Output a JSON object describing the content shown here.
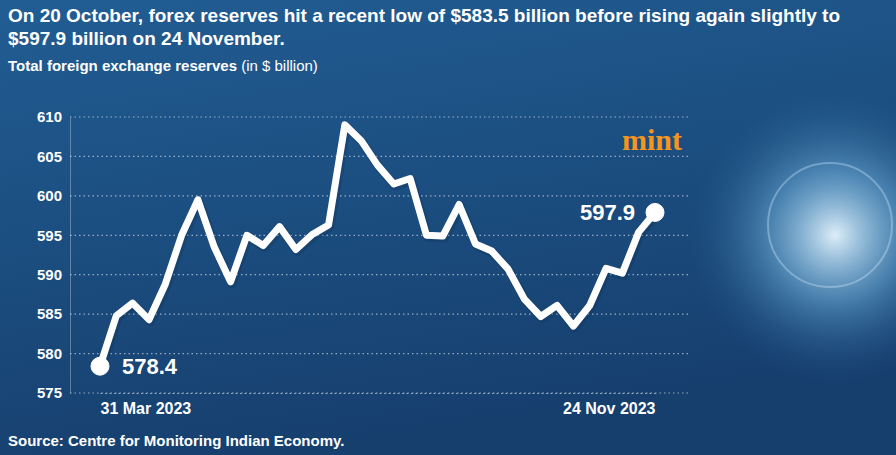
{
  "chart_data": {
    "type": "line",
    "title": "On 20 October, forex reserves hit a recent low of $583.5 billion before rising again slightly to $597.9 billion on 24 November.",
    "subtitle": "Total foreign exchange reserves (in $ billion)",
    "source": "Source: Centre for Monitoring Indian Economy.",
    "logo": "mint",
    "x": [
      "2023-03-31",
      "2023-04-07",
      "2023-04-14",
      "2023-04-21",
      "2023-04-28",
      "2023-05-05",
      "2023-05-12",
      "2023-05-19",
      "2023-05-26",
      "2023-06-02",
      "2023-06-09",
      "2023-06-16",
      "2023-06-23",
      "2023-06-30",
      "2023-07-07",
      "2023-07-14",
      "2023-07-21",
      "2023-07-28",
      "2023-08-04",
      "2023-08-11",
      "2023-08-18",
      "2023-08-25",
      "2023-09-01",
      "2023-09-08",
      "2023-09-15",
      "2023-09-22",
      "2023-09-29",
      "2023-10-06",
      "2023-10-13",
      "2023-10-20",
      "2023-10-27",
      "2023-11-03",
      "2023-11-10",
      "2023-11-17",
      "2023-11-24"
    ],
    "values": [
      578.4,
      584.8,
      586.4,
      584.3,
      588.8,
      595.0,
      599.5,
      593.5,
      589.1,
      595.0,
      593.7,
      596.1,
      593.2,
      595.1,
      596.3,
      609.0,
      607.0,
      603.9,
      601.5,
      602.2,
      595.0,
      594.9,
      598.9,
      593.9,
      593.0,
      590.7,
      586.9,
      584.7,
      586.1,
      583.5,
      586.1,
      590.8,
      590.2,
      595.4,
      597.9
    ],
    "color": "#ffffff",
    "xlim": [
      "2023-03-31",
      "2023-11-24"
    ],
    "xticks": [
      {
        "value": "2023-03-31",
        "label": "31 Mar 2023"
      },
      {
        "value": "2023-11-24",
        "label": "24 Nov 2023"
      }
    ],
    "ylim": [
      575,
      610
    ],
    "yticks": [
      575,
      580,
      585,
      590,
      595,
      600,
      605,
      610
    ],
    "grid": true,
    "annotations": [
      {
        "text": "578.4",
        "x": "2023-03-31",
        "y": 578.4
      },
      {
        "text": "597.9",
        "x": "2023-11-24",
        "y": 597.9
      }
    ]
  }
}
